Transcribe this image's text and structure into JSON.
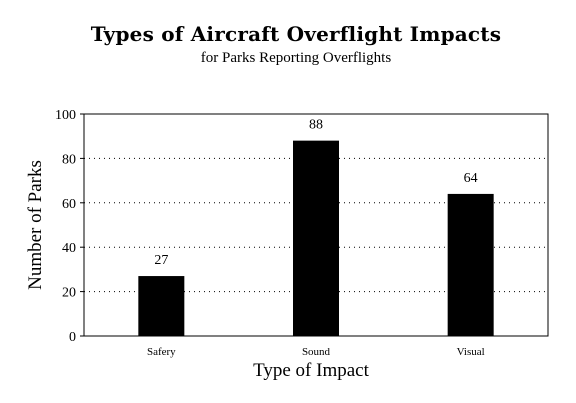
{
  "chart_data": {
    "type": "bar",
    "title": "Types of Aircraft Overflight Impacts",
    "subtitle": "for Parks Reporting Overflights",
    "categories": [
      "Safery",
      "Sound",
      "Visual"
    ],
    "values": [
      27,
      88,
      64
    ],
    "xlabel": "Type of Impact",
    "ylabel": "Number of Parks",
    "ylim": [
      0,
      100
    ],
    "yticks": [
      0,
      20,
      40,
      60,
      80,
      100
    ],
    "grid": "horizontal dotted",
    "legend": "none",
    "bar_color": "#000000"
  }
}
